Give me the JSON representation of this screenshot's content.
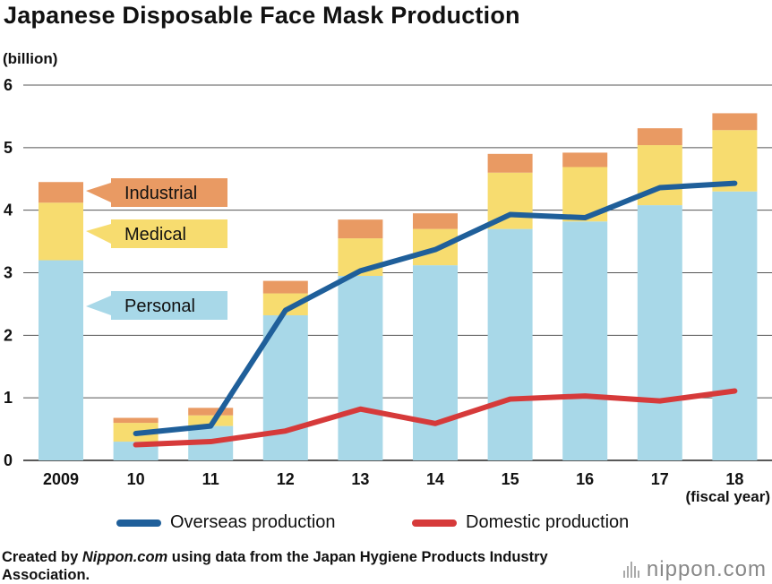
{
  "chart_data": {
    "type": "bar",
    "title": "Japanese Disposable Face Mask Production",
    "ylabel": "(billion)",
    "xlabel": "(fiscal year)",
    "ylim": [
      0,
      6
    ],
    "yticks": [
      "0",
      "1",
      "2",
      "3",
      "4",
      "5",
      "6"
    ],
    "grid": true,
    "categories": [
      "2009",
      "10",
      "11",
      "12",
      "13",
      "14",
      "15",
      "16",
      "17",
      "18"
    ],
    "stacked_series": [
      {
        "name": "Personal",
        "color": "#a8d8e8",
        "values": [
          3.2,
          0.3,
          0.55,
          2.32,
          2.95,
          3.12,
          3.7,
          3.82,
          4.08,
          4.3
        ]
      },
      {
        "name": "Medical",
        "color": "#f7dc6f",
        "values": [
          0.92,
          0.3,
          0.17,
          0.35,
          0.6,
          0.58,
          0.9,
          0.87,
          0.96,
          0.98
        ]
      },
      {
        "name": "Industrial",
        "color": "#e99a63",
        "values": [
          0.33,
          0.08,
          0.12,
          0.2,
          0.3,
          0.25,
          0.3,
          0.23,
          0.27,
          0.27
        ]
      }
    ],
    "line_series": [
      {
        "name": "Overseas production",
        "color": "#1f5f9a",
        "x": [
          "10",
          "11",
          "12",
          "13",
          "14",
          "15",
          "16",
          "17",
          "18"
        ],
        "values": [
          0.43,
          0.55,
          2.4,
          3.03,
          3.37,
          3.93,
          3.88,
          4.36,
          4.43
        ]
      },
      {
        "name": "Domestic production",
        "color": "#d63a3a",
        "x": [
          "10",
          "11",
          "12",
          "13",
          "14",
          "15",
          "16",
          "17",
          "18"
        ],
        "values": [
          0.25,
          0.3,
          0.47,
          0.82,
          0.59,
          0.98,
          1.03,
          0.95,
          1.11
        ]
      }
    ],
    "callouts": [
      "Industrial",
      "Medical",
      "Personal"
    ]
  },
  "legend": {
    "overseas": "Overseas production",
    "domestic": "Domestic production"
  },
  "credit": {
    "prefix": "Created by ",
    "site": "Nippon.com",
    "rest": " using data from the Japan Hygiene Products Industry Association."
  },
  "brand": "nippon.com",
  "colors": {
    "overseas": "#1f5f9a",
    "domestic": "#d63a3a"
  }
}
